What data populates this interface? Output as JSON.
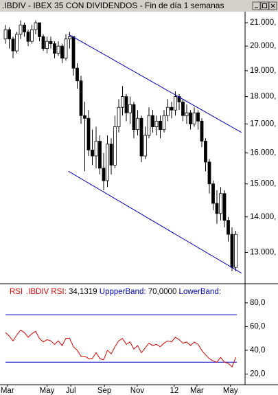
{
  "window_title": ".IBDIV - IBEX 35 CON DIVIDENDOS - Fin de día 1 semanas",
  "chart_data": [
    {
      "type": "candlestick",
      "log_scale": true,
      "up_color": "#ffffff",
      "down_color": "#000000",
      "ylim": [
        12230,
        21460
      ],
      "yticks": [
        {
          "value": 13000,
          "label": "13.000,"
        },
        {
          "value": 14000,
          "label": "14.000,"
        },
        {
          "value": 15000,
          "label": "15.000,"
        },
        {
          "value": 16000,
          "label": "16.000,"
        },
        {
          "value": 17000,
          "label": "17.000,"
        },
        {
          "value": 18000,
          "label": "18.000,"
        },
        {
          "value": 19000,
          "label": "19.000,"
        },
        {
          "value": 20000,
          "label": "20.000,"
        },
        {
          "value": 21000,
          "label": "21.000,"
        }
      ],
      "open": [
        20300,
        20700,
        20300,
        19800,
        20500,
        20900,
        20600,
        20200,
        20700,
        21000,
        20400,
        19900,
        20200,
        20100,
        19700,
        20000,
        19500,
        20300,
        20400,
        19100,
        18600,
        17300,
        17200,
        16100,
        15900,
        16400,
        15500,
        15100,
        16300,
        15600,
        16900,
        17600,
        18000,
        17400,
        17700,
        16800,
        17200,
        15900,
        16600,
        17300,
        16900,
        17100,
        16800,
        17300,
        17600,
        17500,
        18000,
        17800,
        17300,
        17400,
        17000,
        17400,
        17100,
        16400,
        15700,
        15000,
        14400,
        14100,
        14700,
        13900,
        13500,
        12600
      ],
      "high": [
        20900,
        20800,
        20400,
        20600,
        21100,
        21000,
        20700,
        20900,
        21100,
        21000,
        20500,
        20400,
        20400,
        20200,
        20200,
        20100,
        20500,
        20600,
        20400,
        19300,
        18800,
        17800,
        17500,
        16800,
        16900,
        16600,
        16000,
        16600,
        16500,
        17300,
        17900,
        18400,
        18100,
        18000,
        17800,
        17500,
        17300,
        16900,
        17600,
        17500,
        17300,
        17300,
        17500,
        17900,
        17800,
        18200,
        18100,
        17900,
        17700,
        17500,
        17600,
        17500,
        17200,
        16500,
        15800,
        15100,
        14800,
        14900,
        14800,
        14000,
        13700,
        13600
      ],
      "low": [
        20100,
        19900,
        19500,
        19700,
        20300,
        20400,
        20000,
        20100,
        20500,
        20200,
        19800,
        19700,
        19900,
        19500,
        19600,
        19300,
        19400,
        19900,
        18800,
        18300,
        17000,
        15400,
        15900,
        15600,
        15500,
        15300,
        14800,
        14900,
        15300,
        15500,
        16700,
        17300,
        17100,
        17000,
        16500,
        16600,
        15700,
        15800,
        16500,
        16700,
        16600,
        16500,
        16700,
        17100,
        17200,
        17300,
        17500,
        17100,
        17000,
        16800,
        16900,
        16800,
        16200,
        15400,
        14700,
        14200,
        13800,
        13900,
        13700,
        13300,
        12500,
        12500
      ],
      "close": [
        20700,
        20300,
        19800,
        20500,
        20900,
        20600,
        20200,
        20700,
        21000,
        20400,
        19900,
        20200,
        20100,
        19700,
        20000,
        19500,
        20300,
        20400,
        19100,
        18600,
        17300,
        17200,
        16100,
        15900,
        16400,
        15500,
        15100,
        16300,
        15600,
        16900,
        17600,
        18000,
        17400,
        17700,
        16800,
        17200,
        15900,
        16600,
        17300,
        16900,
        17100,
        16800,
        17300,
        17600,
        17500,
        18000,
        17800,
        17300,
        17400,
        17000,
        17400,
        17100,
        16400,
        15700,
        15000,
        14400,
        14100,
        14700,
        13900,
        13500,
        12600,
        13500
      ],
      "trendlines": [
        {
          "color": "#0000cc",
          "from": [
            16.7,
            20500
          ],
          "to": [
            62.5,
            16700
          ]
        },
        {
          "color": "#0000cc",
          "from": [
            16.7,
            15400
          ],
          "to": [
            62.5,
            12450
          ]
        }
      ]
    },
    {
      "type": "line",
      "title": "RSI",
      "ylim": [
        11,
        95
      ],
      "yticks": [
        {
          "value": 20,
          "label": "20,0"
        },
        {
          "value": 40,
          "label": "40,0"
        },
        {
          "value": 60,
          "label": "60,0"
        },
        {
          "value": 80,
          "label": "80,0"
        }
      ],
      "series": [
        {
          "name": ".IBDIV RSI:",
          "color": "#e00000",
          "values": [
            55,
            52,
            48,
            53,
            57,
            55,
            51,
            54,
            56,
            50,
            47,
            49,
            48,
            45,
            48,
            44,
            50,
            50,
            43,
            40,
            35,
            35,
            33,
            33,
            38,
            33,
            32,
            40,
            37,
            43,
            48,
            50,
            45,
            47,
            41,
            44,
            38,
            42,
            46,
            44,
            45,
            43,
            46,
            48,
            47,
            51,
            49,
            46,
            47,
            44,
            47,
            45,
            40,
            36,
            33,
            31,
            30,
            34,
            30,
            29,
            26,
            34.1319
          ],
          "value_labels": [
            null,
            null,
            null,
            null,
            null,
            null,
            null,
            null,
            null,
            null,
            null,
            null,
            null,
            null,
            null,
            null,
            null,
            null,
            null,
            null,
            null,
            null,
            null,
            null,
            null,
            null,
            null,
            null,
            null,
            null,
            null,
            null,
            null,
            null,
            null,
            null,
            null,
            null,
            null,
            null,
            null,
            null,
            null,
            null,
            null,
            null,
            null,
            null,
            null,
            null,
            null,
            null,
            null,
            null,
            null,
            null,
            null,
            null,
            null,
            null,
            null,
            "34,1319"
          ]
        }
      ],
      "bands": [
        {
          "name": "UppperBand:",
          "value": 70,
          "label": "70,0000",
          "color": "#0000cc"
        },
        {
          "name": "LowerBand:",
          "value": 30,
          "color": "#0000cc"
        }
      ],
      "xticks": [
        {
          "value": 0.5,
          "label": "Mar"
        },
        {
          "value": 11,
          "label": "May"
        },
        {
          "value": 17.3,
          "label": "Jul"
        },
        {
          "value": 26.2,
          "label": "Sep"
        },
        {
          "value": 34.9,
          "label": "Nov"
        },
        {
          "value": 44.7,
          "label": "12"
        },
        {
          "value": 50.7,
          "label": "Mar"
        },
        {
          "value": 59.6,
          "label": "May"
        }
      ]
    }
  ]
}
